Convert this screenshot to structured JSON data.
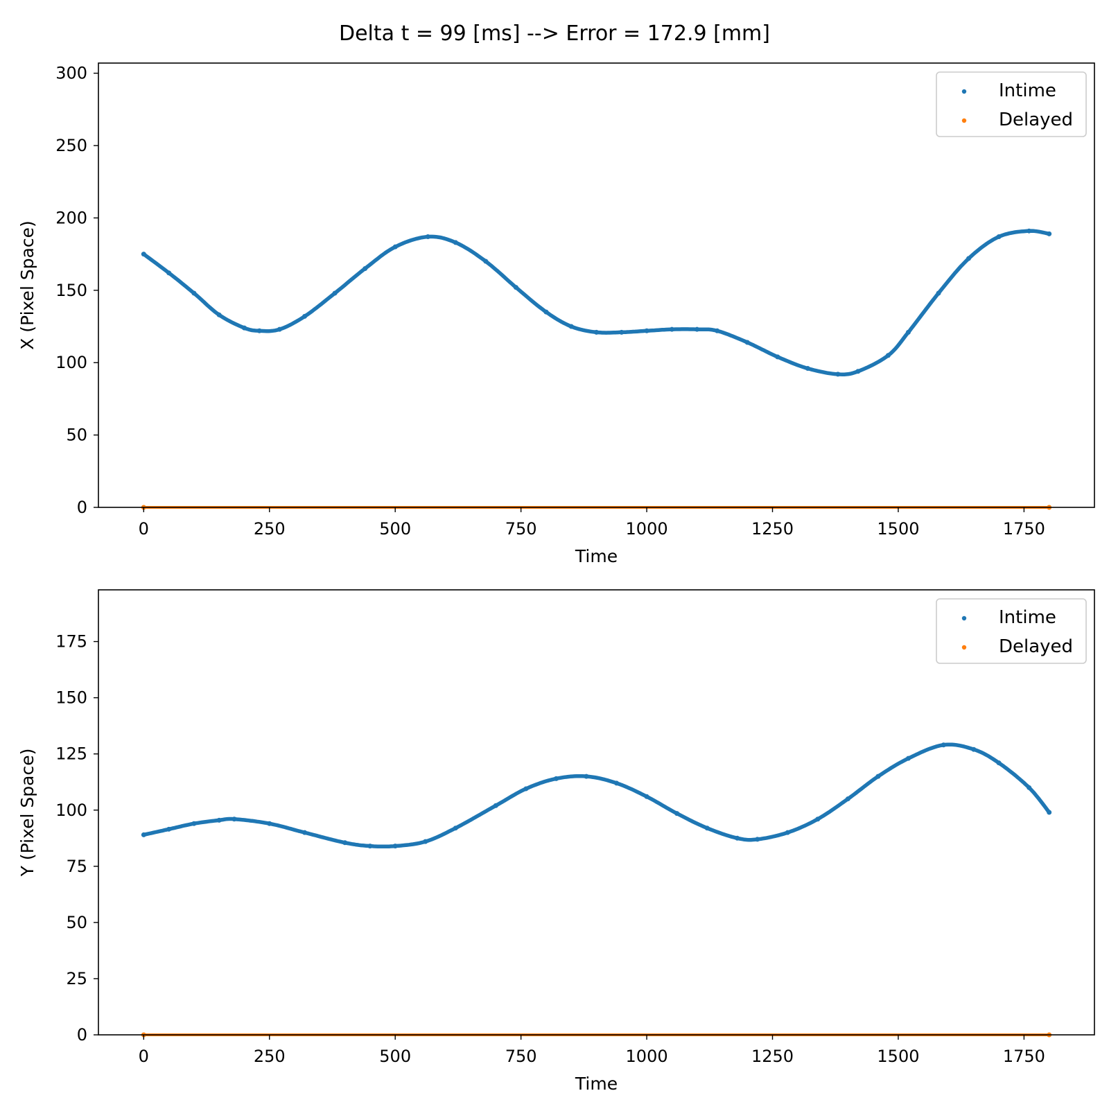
{
  "figure": {
    "title": "Delta t = 99 [ms] --> Error = 172.9 [mm]"
  },
  "colors": {
    "intime": "#1f77b4",
    "delayed": "#ff7f0e",
    "axes": "#000000",
    "legend_border": "#cccccc"
  },
  "chart_data": [
    {
      "type": "scatter",
      "title": "",
      "xlabel": "Time",
      "ylabel": "X (Pixel Space)",
      "xlim": [
        -90,
        1890
      ],
      "ylim": [
        0,
        307
      ],
      "xticks": [
        0,
        250,
        500,
        750,
        1000,
        1250,
        1500,
        1750
      ],
      "yticks": [
        0,
        50,
        100,
        150,
        200,
        250,
        300
      ],
      "legend_position": "top-right",
      "series": [
        {
          "name": "Intime",
          "color_key": "intime",
          "x": [
            0,
            50,
            100,
            150,
            200,
            230,
            270,
            320,
            380,
            440,
            500,
            565,
            620,
            680,
            740,
            800,
            850,
            900,
            950,
            1000,
            1050,
            1100,
            1140,
            1200,
            1260,
            1320,
            1380,
            1420,
            1480,
            1520,
            1580,
            1640,
            1700,
            1760,
            1800
          ],
          "y": [
            175,
            162,
            148,
            133,
            124,
            122,
            123,
            132,
            148,
            165,
            180,
            187,
            183,
            170,
            152,
            135,
            125,
            121,
            121,
            122,
            123,
            123,
            122,
            114,
            104,
            96,
            92,
            94,
            105,
            121,
            148,
            172,
            187,
            191,
            189
          ]
        },
        {
          "name": "Delayed",
          "color_key": "delayed",
          "x": [
            0,
            1800
          ],
          "y": [
            0,
            0
          ]
        }
      ]
    },
    {
      "type": "scatter",
      "title": "",
      "xlabel": "Time",
      "ylabel": "Y (Pixel Space)",
      "xlim": [
        -90,
        1890
      ],
      "ylim": [
        0,
        198
      ],
      "xticks": [
        0,
        250,
        500,
        750,
        1000,
        1250,
        1500,
        1750
      ],
      "yticks": [
        0,
        25,
        50,
        75,
        100,
        125,
        150,
        175
      ],
      "legend_position": "top-right",
      "series": [
        {
          "name": "Intime",
          "color_key": "intime",
          "x": [
            0,
            50,
            100,
            150,
            180,
            250,
            320,
            400,
            450,
            500,
            560,
            620,
            700,
            760,
            820,
            880,
            940,
            1000,
            1060,
            1120,
            1180,
            1220,
            1280,
            1340,
            1400,
            1460,
            1520,
            1590,
            1650,
            1700,
            1760,
            1800
          ],
          "y": [
            89,
            91.5,
            94,
            95.5,
            96,
            94,
            90,
            85.5,
            84,
            84,
            86,
            92,
            102,
            109.5,
            114,
            115,
            112,
            106,
            98.5,
            92,
            87.5,
            87,
            90,
            96,
            105,
            115,
            123,
            129,
            127,
            121,
            110,
            99
          ]
        },
        {
          "name": "Delayed",
          "color_key": "delayed",
          "x": [
            0,
            1800
          ],
          "y": [
            0,
            0
          ]
        }
      ]
    }
  ]
}
